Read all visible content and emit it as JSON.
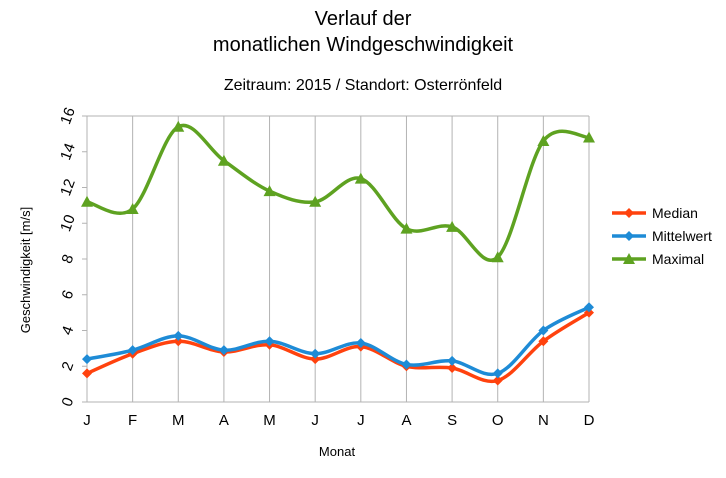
{
  "chart_data": {
    "type": "line",
    "title_line1": "Verlauf der",
    "title_line2": "monatlichen Windgeschwindigkeit",
    "subtitle": "Zeitraum: 2015 / Standort: Osterrönfeld",
    "xlabel": "Monat",
    "ylabel": "Geschwindigkeit [m/s]",
    "ylim": [
      0,
      16
    ],
    "yticks": [
      "0",
      "2",
      "4",
      "6",
      "8",
      "10",
      "12",
      "14",
      "16"
    ],
    "categories": [
      "J",
      "F",
      "M",
      "A",
      "M",
      "J",
      "J",
      "A",
      "S",
      "O",
      "N",
      "D"
    ],
    "grid": "vertical",
    "legend_position": "right",
    "series": [
      {
        "name": "Median",
        "color": "#ff420e",
        "marker": "diamond",
        "values": [
          1.6,
          2.7,
          3.4,
          2.8,
          3.2,
          2.4,
          3.1,
          2.0,
          1.9,
          1.2,
          3.4,
          5.0
        ]
      },
      {
        "name": "Mittelwert",
        "color": "#1e8bd6",
        "marker": "diamond",
        "values": [
          2.4,
          2.9,
          3.7,
          2.9,
          3.4,
          2.7,
          3.3,
          2.1,
          2.3,
          1.6,
          4.0,
          5.3
        ]
      },
      {
        "name": "Maximal",
        "color": "#5ea221",
        "marker": "triangle",
        "values": [
          11.2,
          10.8,
          15.4,
          13.5,
          11.8,
          11.2,
          12.5,
          9.7,
          9.8,
          8.1,
          14.6,
          14.8
        ]
      }
    ]
  }
}
